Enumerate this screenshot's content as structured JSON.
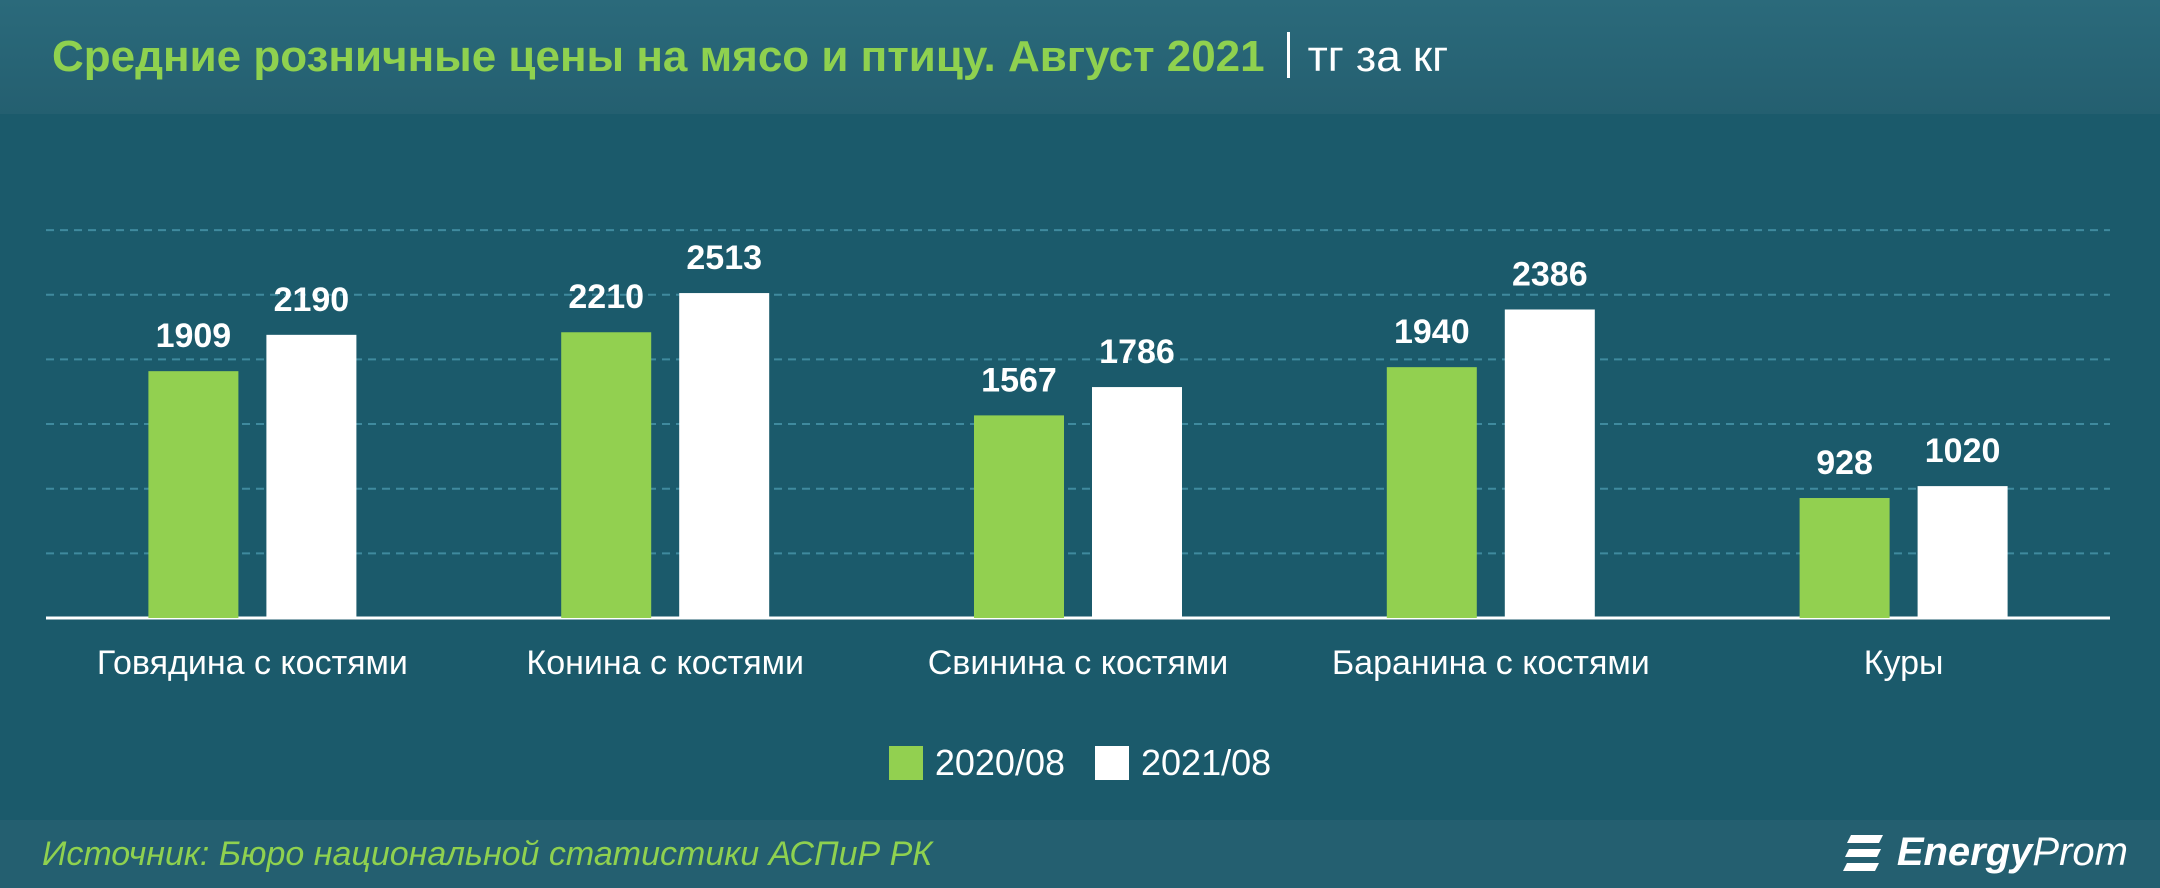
{
  "header": {
    "title": "Средние розничные цены на мясо и птицу. Август 2021",
    "unit": "тг за кг"
  },
  "footer": {
    "source": "Источник: Бюро национальной статистики АСПиР РК",
    "brand_energy": "Energy",
    "brand_prom": "Prom"
  },
  "colors": {
    "series_2020": "#92d050",
    "series_2021": "#ffffff",
    "background": "#1b5a6b",
    "title": "#8fd14f"
  },
  "chart_data": {
    "type": "bar",
    "title": "Средние розничные цены на мясо и птицу. Август 2021",
    "ylabel": "тг за кг",
    "xlabel": "",
    "categories": [
      "Говядина с костями",
      "Конина с костями",
      "Свинина с костями",
      "Баранина с костями",
      "Куры"
    ],
    "series": [
      {
        "name": "2020/08",
        "values": [
          1909,
          2210,
          1567,
          1940,
          928
        ]
      },
      {
        "name": "2021/08",
        "values": [
          2190,
          2513,
          1786,
          2386,
          1020
        ]
      }
    ],
    "ylim": [
      0,
      3000
    ],
    "grid": true,
    "legend": "bottom-center"
  }
}
